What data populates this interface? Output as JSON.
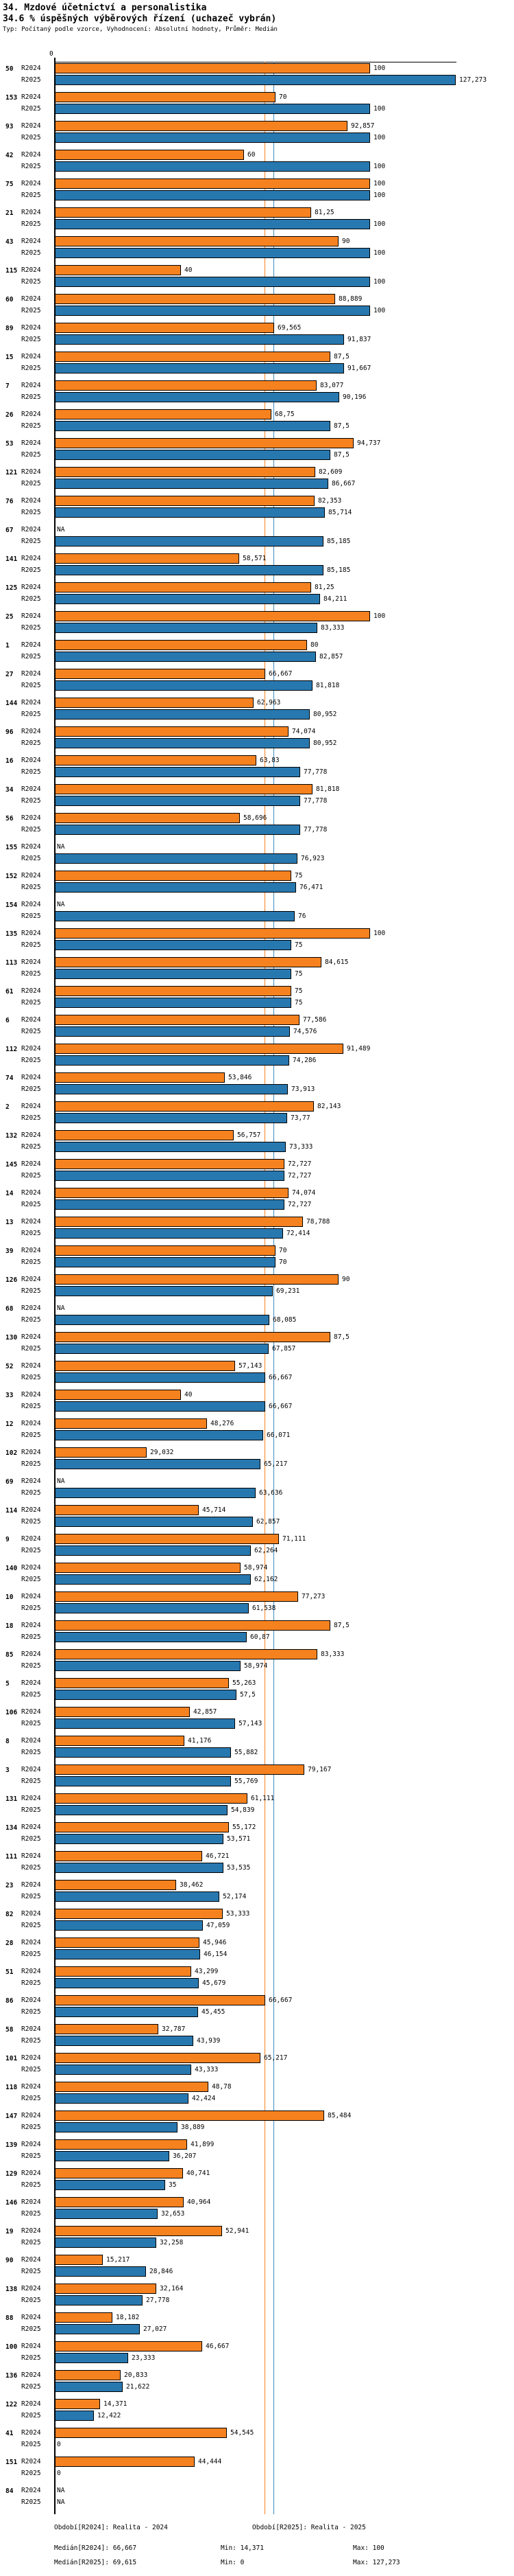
{
  "header": {
    "title": "34. Mzdové účetnictví a personalistika",
    "subtitle": "34.6 % úspěšných výběrových řízení (uchazeč vybrán)",
    "meta": "Typ: Počítaný podle vzorce, Vyhodnocení: Absolutní hodnoty, Průměr: Medián"
  },
  "chart": {
    "zero_label": "0"
  },
  "colors": {
    "r2024_bar": "#F6821F",
    "r2025_bar": "#2878B0",
    "median_2024_line": "#F6821F",
    "median_2025_line": "#3E8DC0",
    "axis": "#000000"
  },
  "chart_data": {
    "type": "bar",
    "orientation": "horizontal",
    "title": "34.6 % úspěšných výběrových řízení (uchazeč vybrán)",
    "xlabel": "",
    "ylabel": "",
    "xlim": [
      0,
      130
    ],
    "grid": false,
    "legend_position": "none",
    "series_names": [
      "R2024",
      "R2025"
    ],
    "medians": {
      "R2024": 66.667,
      "R2025": 69.615
    },
    "categories": [
      "50",
      "153",
      "93",
      "42",
      "75",
      "21",
      "43",
      "115",
      "60",
      "89",
      "15",
      "7",
      "26",
      "53",
      "121",
      "76",
      "67",
      "141",
      "125",
      "25",
      "1",
      "27",
      "144",
      "96",
      "16",
      "34",
      "56",
      "155",
      "152",
      "154",
      "135",
      "113",
      "61",
      "6",
      "112",
      "74",
      "2",
      "132",
      "145",
      "14",
      "13",
      "39",
      "126",
      "68",
      "130",
      "52",
      "33",
      "12",
      "102",
      "69",
      "114",
      "9",
      "140",
      "10",
      "18",
      "85",
      "5",
      "106",
      "8",
      "3",
      "131",
      "134",
      "111",
      "23",
      "82",
      "28",
      "51",
      "86",
      "58",
      "101",
      "118",
      "147",
      "139",
      "129",
      "146",
      "19",
      "90",
      "138",
      "88",
      "100",
      "136",
      "122",
      "41",
      "151",
      "84"
    ],
    "series": [
      {
        "name": "R2024",
        "values": [
          100,
          70,
          92.857,
          60,
          100,
          81.25,
          90,
          40,
          88.889,
          69.565,
          87.5,
          83.077,
          68.75,
          94.737,
          82.609,
          82.353,
          null,
          58.571,
          81.25,
          100,
          80,
          66.667,
          62.963,
          74.074,
          63.83,
          81.818,
          58.696,
          null,
          75,
          null,
          100,
          84.615,
          75,
          77.586,
          91.489,
          53.846,
          82.143,
          56.757,
          72.727,
          74.074,
          78.788,
          70,
          90,
          null,
          87.5,
          57.143,
          40,
          48.276,
          29.032,
          null,
          45.714,
          71.111,
          58.974,
          77.273,
          87.5,
          83.333,
          55.263,
          42.857,
          41.176,
          79.167,
          61.111,
          55.172,
          46.721,
          38.462,
          53.333,
          45.946,
          43.299,
          66.667,
          32.787,
          65.217,
          48.78,
          85.484,
          41.899,
          40.741,
          40.964,
          52.941,
          15.217,
          32.164,
          18.182,
          46.667,
          20.833,
          14.371,
          54.545,
          44.444,
          null
        ],
        "labels": [
          "100",
          "70",
          "92,857",
          "60",
          "100",
          "81,25",
          "90",
          "40",
          "88,889",
          "69,565",
          "87,5",
          "83,077",
          "68,75",
          "94,737",
          "82,609",
          "82,353",
          "NA",
          "58,571",
          "81,25",
          "100",
          "80",
          "66,667",
          "62,963",
          "74,074",
          "63,83",
          "81,818",
          "58,696",
          "NA",
          "75",
          "NA",
          "100",
          "84,615",
          "75",
          "77,586",
          "91,489",
          "53,846",
          "82,143",
          "56,757",
          "72,727",
          "74,074",
          "78,788",
          "70",
          "90",
          "NA",
          "87,5",
          "57,143",
          "40",
          "48,276",
          "29,032",
          "NA",
          "45,714",
          "71,111",
          "58,974",
          "77,273",
          "87,5",
          "83,333",
          "55,263",
          "42,857",
          "41,176",
          "79,167",
          "61,111",
          "55,172",
          "46,721",
          "38,462",
          "53,333",
          "45,946",
          "43,299",
          "66,667",
          "32,787",
          "65,217",
          "48,78",
          "85,484",
          "41,899",
          "40,741",
          "40,964",
          "52,941",
          "15,217",
          "32,164",
          "18,182",
          "46,667",
          "20,833",
          "14,371",
          "54,545",
          "44,444",
          "NA"
        ]
      },
      {
        "name": "R2025",
        "values": [
          127.273,
          100,
          100,
          100,
          100,
          100,
          100,
          100,
          100,
          91.837,
          91.667,
          90.196,
          87.5,
          87.5,
          86.667,
          85.714,
          85.185,
          85.185,
          84.211,
          83.333,
          82.857,
          81.818,
          80.952,
          80.952,
          77.778,
          77.778,
          77.778,
          76.923,
          76.471,
          76,
          75,
          75,
          75,
          74.576,
          74.286,
          73.913,
          73.77,
          73.333,
          72.727,
          72.727,
          72.414,
          70,
          69.231,
          68.085,
          67.857,
          66.667,
          66.667,
          66.071,
          65.217,
          63.636,
          62.857,
          62.264,
          62.162,
          61.538,
          60.87,
          58.974,
          57.5,
          57.143,
          55.882,
          55.769,
          54.839,
          53.571,
          53.535,
          52.174,
          47.059,
          46.154,
          45.679,
          45.455,
          43.939,
          43.333,
          42.424,
          38.889,
          36.207,
          35,
          32.653,
          32.258,
          28.846,
          27.778,
          27.027,
          23.333,
          21.622,
          12.422,
          0,
          0,
          null
        ],
        "labels": [
          "127,273",
          "100",
          "100",
          "100",
          "100",
          "100",
          "100",
          "100",
          "100",
          "91,837",
          "91,667",
          "90,196",
          "87,5",
          "87,5",
          "86,667",
          "85,714",
          "85,185",
          "85,185",
          "84,211",
          "83,333",
          "82,857",
          "81,818",
          "80,952",
          "80,952",
          "77,778",
          "77,778",
          "77,778",
          "76,923",
          "76,471",
          "76",
          "75",
          "75",
          "75",
          "74,576",
          "74,286",
          "73,913",
          "73,77",
          "73,333",
          "72,727",
          "72,727",
          "72,414",
          "70",
          "69,231",
          "68,085",
          "67,857",
          "66,667",
          "66,667",
          "66,071",
          "65,217",
          "63,636",
          "62,857",
          "62,264",
          "62,162",
          "61,538",
          "60,87",
          "58,974",
          "57,5",
          "57,143",
          "55,882",
          "55,769",
          "54,839",
          "53,571",
          "53,535",
          "52,174",
          "47,059",
          "46,154",
          "45,679",
          "45,455",
          "43,939",
          "43,333",
          "42,424",
          "38,889",
          "36,207",
          "35",
          "32,653",
          "32,258",
          "28,846",
          "27,778",
          "27,027",
          "23,333",
          "21,622",
          "12,422",
          "0",
          "0",
          "NA"
        ]
      }
    ]
  },
  "footer": {
    "period_2024": "Období[R2024]: Realita - 2024",
    "period_2025": "Období[R2025]: Realita - 2025",
    "median_2024": "Medián[R2024]: 66,667",
    "min_2024": "Min: 14,371",
    "max_2024": "Max: 100",
    "median_2025": "Medián[R2025]: 69,615",
    "min_2025": "Min: 0",
    "max_2025": "Max: 127,273"
  }
}
